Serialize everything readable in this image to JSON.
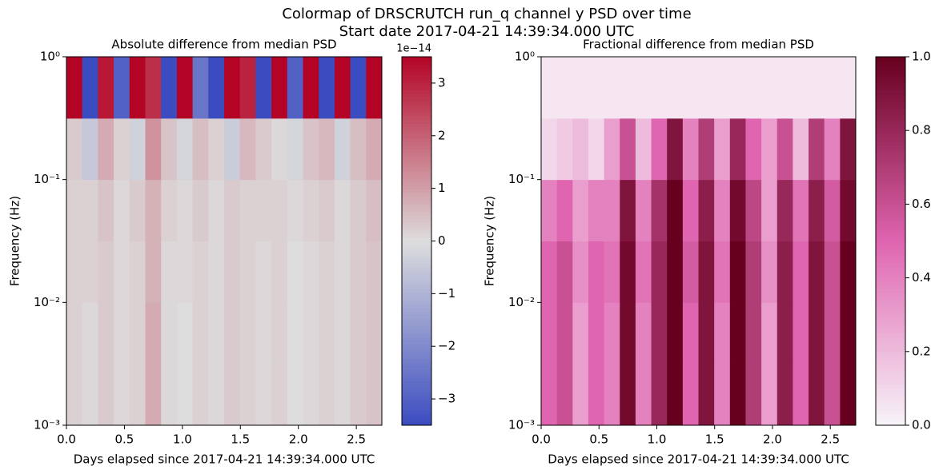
{
  "suptitle": "Colormap of DRSCRUTCH run_q channel y PSD over time",
  "subtitle": "Start date 2017-04-21 14:39:34.000 UTC",
  "chart_data": [
    {
      "type": "heatmap",
      "title": "Absolute difference from median PSD",
      "xlabel": "Days elapsed since 2017-04-21 14:39:34.000 UTC",
      "ylabel": "Frequency (Hz)",
      "xlim": [
        0,
        2.72
      ],
      "ylim": [
        0.001,
        1
      ],
      "yscale": "log",
      "xticks": [
        {
          "value": 0,
          "label": "0.0"
        },
        {
          "value": 0.5,
          "label": "0.5"
        },
        {
          "value": 1,
          "label": "1.0"
        },
        {
          "value": 1.5,
          "label": "1.5"
        },
        {
          "value": 2,
          "label": "2.0"
        },
        {
          "value": 2.5,
          "label": "2.5"
        }
      ],
      "yticks": [
        {
          "value": 0.001,
          "label": "10⁻³"
        },
        {
          "value": 0.01,
          "label": "10⁻²"
        },
        {
          "value": 0.1,
          "label": "10⁻¹"
        },
        {
          "value": 1,
          "label": "10⁰"
        }
      ],
      "xbins": [
        0,
        0.136,
        0.272,
        0.408,
        0.544,
        0.68,
        0.816,
        0.952,
        1.088,
        1.224,
        1.36,
        1.496,
        1.632,
        1.768,
        1.904,
        2.04,
        2.176,
        2.312,
        2.448,
        2.584,
        2.72
      ],
      "ybins": [
        0.001,
        0.00316,
        0.01,
        0.0316,
        0.1,
        0.316,
        1
      ],
      "z": [
        [
          0.2,
          0.1,
          0.3,
          0.1,
          0.2,
          0.8,
          0.1,
          0,
          0.2,
          0.1,
          0.3,
          0.2,
          0.1,
          0.2,
          0,
          0.1,
          0.2,
          0.1,
          0.3,
          0.4
        ],
        [
          0.2,
          0.1,
          0.3,
          0.1,
          0.2,
          0.8,
          0.1,
          0,
          0.2,
          0.1,
          0.3,
          0.2,
          0.1,
          0.2,
          0,
          0.1,
          0.2,
          0.1,
          0.3,
          0.4
        ],
        [
          0.2,
          0.2,
          0.3,
          0.1,
          0.2,
          0.7,
          0.1,
          0.1,
          0.2,
          0.1,
          0.3,
          0.2,
          0.1,
          0.2,
          0,
          0.1,
          0.2,
          0.1,
          0.3,
          0.4
        ],
        [
          0.2,
          0.2,
          0.4,
          0.1,
          0.3,
          0.7,
          0.2,
          0.1,
          0.3,
          0.1,
          0.3,
          0.2,
          0.2,
          0.2,
          0.1,
          0.2,
          0.3,
          0.1,
          0.3,
          0.5
        ],
        [
          0.3,
          -0.5,
          0.8,
          0.2,
          -0.3,
          1.2,
          0.4,
          -0.2,
          0.5,
          0.2,
          -0.4,
          0.6,
          0.3,
          0.1,
          -0.2,
          0.4,
          0.6,
          -0.3,
          0.5,
          0.8
        ],
        [
          3.5,
          -3.5,
          3.2,
          -3,
          3.5,
          2.8,
          -3.5,
          3.5,
          -2.5,
          -3.5,
          3.5,
          3,
          -3.5,
          3.5,
          -3,
          3.5,
          -3.5,
          3.5,
          -3.5,
          3.5
        ]
      ],
      "colormap": [
        "#3b4cc0",
        "#dddddd",
        "#b40426"
      ],
      "clim": [
        -3.5,
        3.5
      ],
      "cticks": [
        {
          "value": -3,
          "label": "−3"
        },
        {
          "value": -2,
          "label": "−2"
        },
        {
          "value": -1,
          "label": "−1"
        },
        0,
        1,
        2,
        3
      ],
      "coffset": "1e−14"
    },
    {
      "type": "heatmap",
      "title": "Fractional difference from median PSD",
      "xlabel": "Days elapsed since 2017-04-21 14:39:34.000 UTC",
      "ylabel": "Frequency (Hz)",
      "xlim": [
        0,
        2.72
      ],
      "ylim": [
        0.001,
        1
      ],
      "yscale": "log",
      "xticks": [
        {
          "value": 0,
          "label": "0.0"
        },
        {
          "value": 0.5,
          "label": "0.5"
        },
        {
          "value": 1,
          "label": "1.0"
        },
        {
          "value": 1.5,
          "label": "1.5"
        },
        {
          "value": 2,
          "label": "2.0"
        },
        {
          "value": 2.5,
          "label": "2.5"
        }
      ],
      "yticks": [
        {
          "value": 0.001,
          "label": "10⁻³"
        },
        {
          "value": 0.01,
          "label": "10⁻²"
        },
        {
          "value": 0.1,
          "label": "10⁻¹"
        },
        {
          "value": 1,
          "label": "10⁰"
        }
      ],
      "xbins": [
        0,
        0.136,
        0.272,
        0.408,
        0.544,
        0.68,
        0.816,
        0.952,
        1.088,
        1.224,
        1.36,
        1.496,
        1.632,
        1.768,
        1.904,
        2.04,
        2.176,
        2.312,
        2.448,
        2.584,
        2.72
      ],
      "ybins": [
        0.001,
        0.00316,
        0.01,
        0.0316,
        0.1,
        0.316,
        1
      ],
      "z": [
        [
          0.5,
          0.6,
          0.3,
          0.5,
          0.4,
          0.95,
          0.4,
          0.8,
          1,
          0.5,
          0.9,
          0.4,
          1,
          0.7,
          0.3,
          0.85,
          0.5,
          0.9,
          0.6,
          1
        ],
        [
          0.5,
          0.6,
          0.3,
          0.5,
          0.4,
          0.95,
          0.4,
          0.8,
          1,
          0.5,
          0.9,
          0.4,
          1,
          0.7,
          0.3,
          0.85,
          0.5,
          0.9,
          0.6,
          1
        ],
        [
          0.5,
          0.6,
          0.35,
          0.5,
          0.45,
          0.95,
          0.45,
          0.8,
          1,
          0.55,
          0.9,
          0.45,
          1,
          0.7,
          0.35,
          0.85,
          0.5,
          0.9,
          0.6,
          1
        ],
        [
          0.4,
          0.5,
          0.3,
          0.4,
          0.4,
          0.9,
          0.4,
          0.75,
          1,
          0.5,
          0.85,
          0.4,
          0.95,
          0.65,
          0.3,
          0.8,
          0.45,
          0.85,
          0.55,
          0.95
        ],
        [
          0.1,
          0.15,
          0.2,
          0.1,
          0.3,
          0.6,
          0.2,
          0.5,
          0.9,
          0.4,
          0.7,
          0.3,
          0.8,
          0.5,
          0.3,
          0.6,
          0.2,
          0.7,
          0.4,
          0.9
        ],
        [
          0.05,
          0.05,
          0.05,
          0.05,
          0.05,
          0.05,
          0.05,
          0.05,
          0.05,
          0.05,
          0.05,
          0.05,
          0.05,
          0.05,
          0.05,
          0.05,
          0.05,
          0.05,
          0.05,
          0.05
        ]
      ],
      "colormap": [
        "#f7f4f9",
        "#df65b0",
        "#67001f"
      ],
      "clim": [
        0,
        1
      ],
      "cticks": [
        {
          "value": 0,
          "label": "0.0"
        },
        {
          "value": 0.2,
          "label": "0.2"
        },
        {
          "value": 0.4,
          "label": "0.4"
        },
        {
          "value": 0.6,
          "label": "0.6"
        },
        {
          "value": 0.8,
          "label": "0.8"
        },
        {
          "value": 1,
          "label": "1.0"
        }
      ]
    }
  ]
}
